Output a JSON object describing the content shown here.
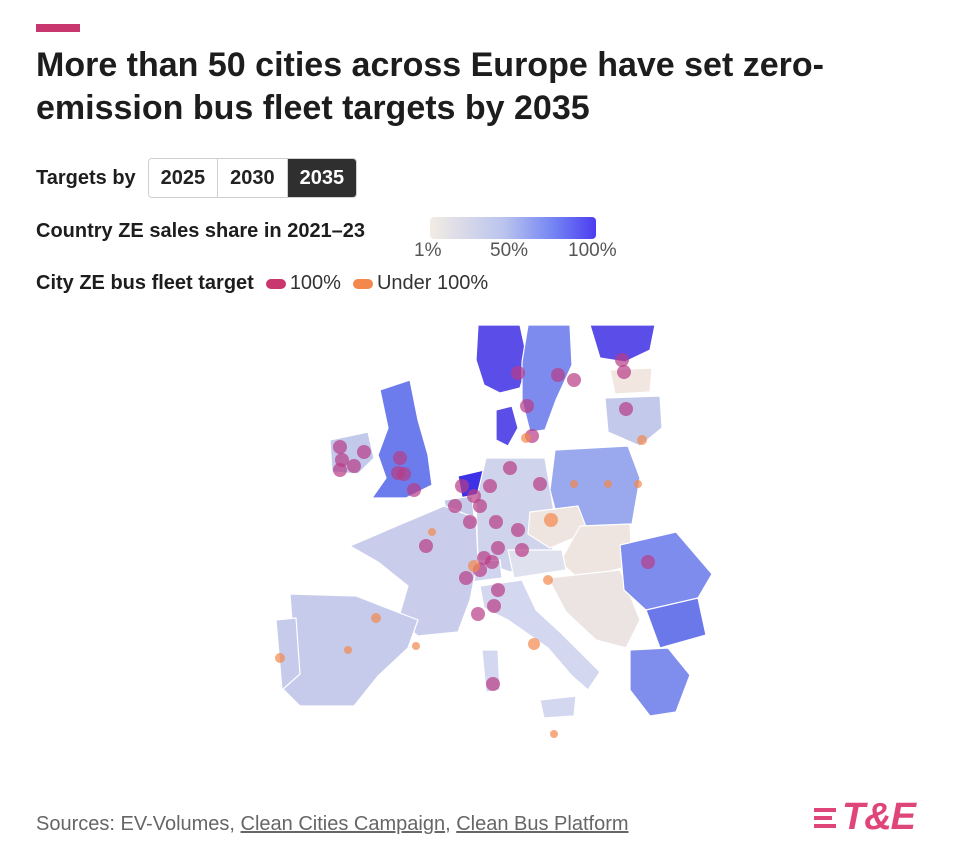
{
  "title": "More than 50 cities across Europe have set zero-emission bus fleet targets by 2035",
  "controls": {
    "label": "Targets by",
    "options": [
      "2025",
      "2030",
      "2035"
    ],
    "selected": "2035"
  },
  "legend": {
    "country_scale_title": "Country ZE sales share in 2021–23",
    "scale_ticks": [
      "1%",
      "50%",
      "100%"
    ],
    "city_target_title": "City ZE bus fleet target",
    "city_items": [
      {
        "label": "100%",
        "color": "#c8376e"
      },
      {
        "label": "Under 100%",
        "color": "#f4874b"
      }
    ]
  },
  "colors": {
    "accent": "#c8376e",
    "low": "#f3ece4",
    "mid": "#b9c3ee",
    "high": "#4c3cf0",
    "city_100": "#b83c86",
    "city_under": "#f4874b"
  },
  "footer": {
    "prefix": "Sources: EV-Volumes, ",
    "link1": "Clean Cities Campaign",
    "sep": ", ",
    "link2": "Clean Bus Platform"
  },
  "logo": {
    "text": "T&E"
  }
}
